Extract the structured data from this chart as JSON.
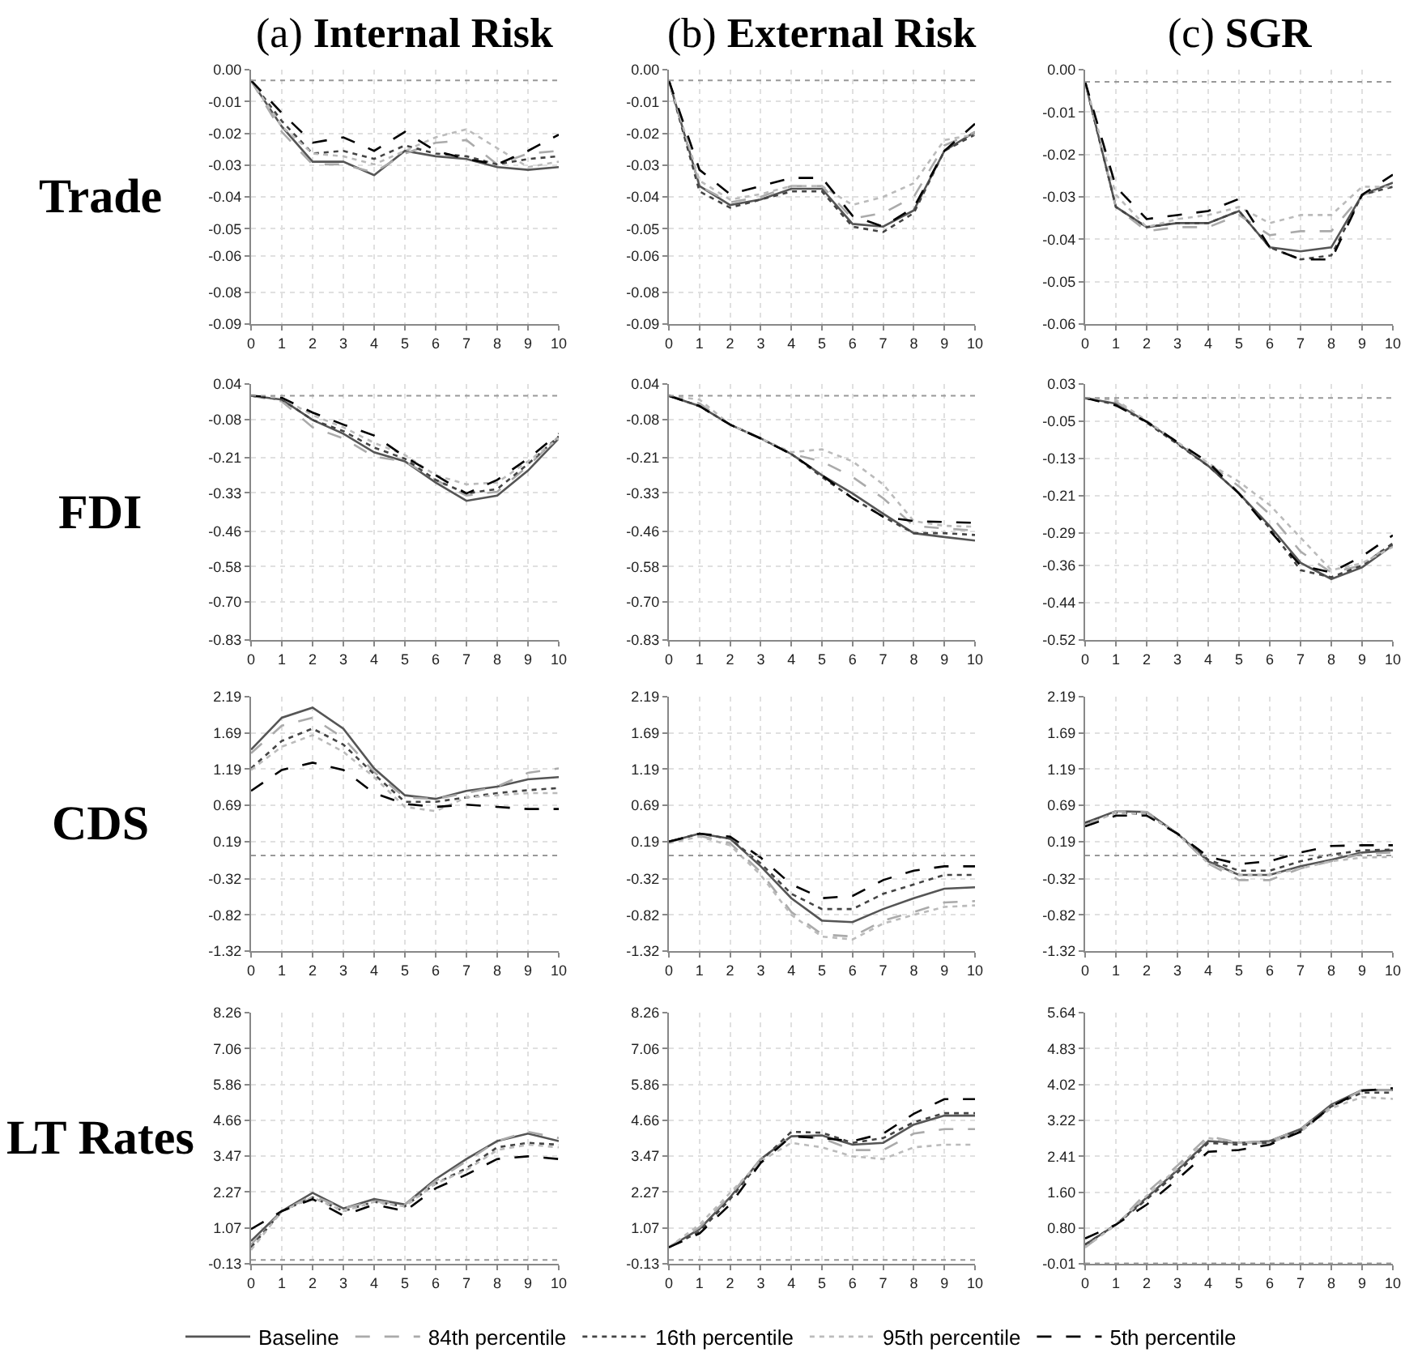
{
  "chart_data": [
    {
      "type": "line",
      "title": "(a) Internal Risk",
      "ylabel": "Trade",
      "x": [
        0,
        1,
        2,
        3,
        4,
        5,
        6,
        7,
        8,
        9,
        10
      ],
      "xlim": [
        0,
        10
      ],
      "xticks": [
        0,
        1,
        2,
        3,
        4,
        5,
        6,
        7,
        8,
        9,
        10
      ],
      "ylim": [
        -0.09,
        0.004
      ],
      "yticks": [
        {
          "value": 0.004,
          "label": "0.00"
        },
        {
          "value": -0.0078,
          "label": "-0.01"
        },
        {
          "value": -0.0195,
          "label": "-0.02"
        },
        {
          "value": -0.0313,
          "label": "-0.03"
        },
        {
          "value": -0.043,
          "label": "-0.04"
        },
        {
          "value": -0.0548,
          "label": "-0.05"
        },
        {
          "value": -0.0649,
          "label": "-0.06"
        },
        {
          "value": -0.0783,
          "label": "-0.08"
        },
        {
          "value": -0.09,
          "label": "-0.09"
        }
      ],
      "grid": true,
      "legend": "bottom",
      "ref_lines": [
        {
          "axis": "y",
          "value": 0,
          "color": "#999999",
          "line_style": "dotted"
        }
      ],
      "series": [
        {
          "name": "Baseline",
          "color": "#555555",
          "line_style": "solid",
          "values": [
            0,
            -0.017,
            -0.03,
            -0.03,
            -0.035,
            -0.026,
            -0.028,
            -0.029,
            -0.032,
            -0.033,
            -0.032
          ]
        },
        {
          "name": "84th percentile",
          "color": "#aaaaaa",
          "line_style": "dashed",
          "values": [
            0,
            -0.019,
            -0.031,
            -0.031,
            -0.034,
            -0.027,
            -0.023,
            -0.022,
            -0.031,
            -0.027,
            -0.026
          ]
        },
        {
          "name": "16th percentile",
          "color": "#444444",
          "line_style": "dotted",
          "values": [
            0,
            -0.015,
            -0.027,
            -0.026,
            -0.029,
            -0.024,
            -0.027,
            -0.028,
            -0.031,
            -0.029,
            -0.028
          ]
        },
        {
          "name": "95th percentile",
          "color": "#bbbbbb",
          "line_style": "dotted",
          "values": [
            0,
            -0.017,
            -0.027,
            -0.028,
            -0.031,
            -0.026,
            -0.021,
            -0.018,
            -0.025,
            -0.032,
            -0.03
          ]
        },
        {
          "name": "5th percentile",
          "color": "#000000",
          "line_style": "dashed",
          "values": [
            0,
            -0.012,
            -0.023,
            -0.021,
            -0.026,
            -0.019,
            -0.026,
            -0.029,
            -0.031,
            -0.026,
            -0.02
          ]
        }
      ]
    },
    {
      "type": "line",
      "title": "(b) External Risk",
      "x": [
        0,
        1,
        2,
        3,
        4,
        5,
        6,
        7,
        8,
        9,
        10
      ],
      "xlim": [
        0,
        10
      ],
      "xticks": [
        0,
        1,
        2,
        3,
        4,
        5,
        6,
        7,
        8,
        9,
        10
      ],
      "ylim": [
        -0.09,
        0.004
      ],
      "yticks": [
        {
          "value": 0.004,
          "label": "0.00"
        },
        {
          "value": -0.0078,
          "label": "-0.01"
        },
        {
          "value": -0.0195,
          "label": "-0.02"
        },
        {
          "value": -0.0313,
          "label": "-0.03"
        },
        {
          "value": -0.043,
          "label": "-0.04"
        },
        {
          "value": -0.0548,
          "label": "-0.05"
        },
        {
          "value": -0.0649,
          "label": "-0.06"
        },
        {
          "value": -0.0783,
          "label": "-0.08"
        },
        {
          "value": -0.09,
          "label": "-0.09"
        }
      ],
      "grid": true,
      "legend": "bottom",
      "ref_lines": [
        {
          "axis": "y",
          "value": 0,
          "color": "#999999",
          "line_style": "dotted"
        }
      ],
      "series": [
        {
          "name": "Baseline",
          "color": "#555555",
          "line_style": "solid",
          "values": [
            0,
            -0.039,
            -0.046,
            -0.044,
            -0.04,
            -0.04,
            -0.053,
            -0.054,
            -0.048,
            -0.026,
            -0.019
          ]
        },
        {
          "name": "84th percentile",
          "color": "#aaaaaa",
          "line_style": "dashed",
          "values": [
            0,
            -0.039,
            -0.045,
            -0.043,
            -0.039,
            -0.039,
            -0.051,
            -0.049,
            -0.043,
            -0.024,
            -0.019
          ]
        },
        {
          "name": "16th percentile",
          "color": "#444444",
          "line_style": "dotted",
          "values": [
            0,
            -0.041,
            -0.047,
            -0.044,
            -0.041,
            -0.041,
            -0.054,
            -0.056,
            -0.049,
            -0.026,
            -0.02
          ]
        },
        {
          "name": "95th percentile",
          "color": "#bbbbbb",
          "line_style": "dotted",
          "values": [
            0,
            -0.037,
            -0.044,
            -0.042,
            -0.039,
            -0.039,
            -0.046,
            -0.043,
            -0.038,
            -0.022,
            -0.02
          ]
        },
        {
          "name": "5th percentile",
          "color": "#000000",
          "line_style": "dashed",
          "values": [
            0,
            -0.033,
            -0.042,
            -0.039,
            -0.036,
            -0.036,
            -0.05,
            -0.054,
            -0.047,
            -0.026,
            -0.016
          ]
        }
      ]
    },
    {
      "type": "line",
      "title": "(c) SGR",
      "x": [
        0,
        1,
        2,
        3,
        4,
        5,
        6,
        7,
        8,
        9,
        10
      ],
      "xlim": [
        0,
        10
      ],
      "xticks": [
        0,
        1,
        2,
        3,
        4,
        5,
        6,
        7,
        8,
        9,
        10
      ],
      "ylim": [
        -0.06,
        0.003
      ],
      "yticks": [
        {
          "value": 0.003,
          "label": "0.00"
        },
        {
          "value": -0.0075,
          "label": "-0.01"
        },
        {
          "value": -0.018,
          "label": "-0.02"
        },
        {
          "value": -0.0285,
          "label": "-0.03"
        },
        {
          "value": -0.039,
          "label": "-0.04"
        },
        {
          "value": -0.0495,
          "label": "-0.05"
        },
        {
          "value": -0.06,
          "label": "-0.06"
        }
      ],
      "grid": true,
      "legend": "bottom",
      "ref_lines": [
        {
          "axis": "y",
          "value": 0,
          "color": "#999999",
          "line_style": "dotted"
        }
      ],
      "series": [
        {
          "name": "Baseline",
          "color": "#555555",
          "line_style": "solid",
          "values": [
            0,
            -0.031,
            -0.036,
            -0.035,
            -0.035,
            -0.032,
            -0.041,
            -0.042,
            -0.041,
            -0.028,
            -0.025
          ]
        },
        {
          "name": "84th percentile",
          "color": "#aaaaaa",
          "line_style": "dashed",
          "values": [
            0,
            -0.031,
            -0.037,
            -0.036,
            -0.036,
            -0.033,
            -0.038,
            -0.037,
            -0.037,
            -0.028,
            -0.026
          ]
        },
        {
          "name": "16th percentile",
          "color": "#444444",
          "line_style": "dotted",
          "values": [
            0,
            -0.031,
            -0.036,
            -0.035,
            -0.035,
            -0.032,
            -0.041,
            -0.044,
            -0.043,
            -0.028,
            -0.026
          ]
        },
        {
          "name": "95th percentile",
          "color": "#bbbbbb",
          "line_style": "dotted",
          "values": [
            0,
            -0.028,
            -0.036,
            -0.034,
            -0.033,
            -0.031,
            -0.035,
            -0.033,
            -0.033,
            -0.026,
            -0.026
          ]
        },
        {
          "name": "5th percentile",
          "color": "#000000",
          "line_style": "dashed",
          "values": [
            0,
            -0.026,
            -0.034,
            -0.033,
            -0.032,
            -0.029,
            -0.041,
            -0.044,
            -0.044,
            -0.028,
            -0.023
          ]
        }
      ]
    },
    {
      "type": "line",
      "ylabel": "FDI",
      "x": [
        0,
        1,
        2,
        3,
        4,
        5,
        6,
        7,
        8,
        9,
        10
      ],
      "xlim": [
        0,
        10
      ],
      "xticks": [
        0,
        1,
        2,
        3,
        4,
        5,
        6,
        7,
        8,
        9,
        10
      ],
      "ylim": [
        -0.83,
        0.04
      ],
      "yticks": [
        {
          "value": 0.04,
          "label": "0.04"
        },
        {
          "value": -0.08,
          "label": "-0.08"
        },
        {
          "value": -0.21,
          "label": "-0.21"
        },
        {
          "value": -0.33,
          "label": "-0.33"
        },
        {
          "value": -0.46,
          "label": "-0.46"
        },
        {
          "value": -0.58,
          "label": "-0.58"
        },
        {
          "value": -0.7,
          "label": "-0.70"
        },
        {
          "value": -0.83,
          "label": "-0.83"
        }
      ],
      "grid": true,
      "legend": "bottom",
      "ref_lines": [
        {
          "axis": "y",
          "value": 0,
          "color": "#999999",
          "line_style": "dotted"
        }
      ],
      "series": [
        {
          "name": "Baseline",
          "color": "#555555",
          "line_style": "solid",
          "values": [
            0,
            -0.013,
            -0.082,
            -0.129,
            -0.192,
            -0.223,
            -0.295,
            -0.357,
            -0.339,
            -0.254,
            -0.145
          ]
        },
        {
          "name": "84th percentile",
          "color": "#aaaaaa",
          "line_style": "dashed",
          "values": [
            0,
            -0.019,
            -0.107,
            -0.145,
            -0.207,
            -0.223,
            -0.286,
            -0.339,
            -0.326,
            -0.239,
            -0.138
          ]
        },
        {
          "name": "16th percentile",
          "color": "#444444",
          "line_style": "dotted",
          "values": [
            0,
            -0.013,
            -0.082,
            -0.12,
            -0.176,
            -0.214,
            -0.286,
            -0.332,
            -0.317,
            -0.232,
            -0.138
          ]
        },
        {
          "name": "95th percentile",
          "color": "#bbbbbb",
          "line_style": "dotted",
          "values": [
            0,
            -0.007,
            -0.066,
            -0.107,
            -0.16,
            -0.201,
            -0.27,
            -0.301,
            -0.295,
            -0.223,
            -0.145
          ]
        },
        {
          "name": "5th percentile",
          "color": "#000000",
          "line_style": "dashed",
          "values": [
            0,
            -0.007,
            -0.057,
            -0.098,
            -0.135,
            -0.207,
            -0.27,
            -0.332,
            -0.286,
            -0.214,
            -0.129
          ]
        }
      ]
    },
    {
      "type": "line",
      "x": [
        0,
        1,
        2,
        3,
        4,
        5,
        6,
        7,
        8,
        9,
        10
      ],
      "xlim": [
        0,
        10
      ],
      "xticks": [
        0,
        1,
        2,
        3,
        4,
        5,
        6,
        7,
        8,
        9,
        10
      ],
      "ylim": [
        -0.83,
        0.04
      ],
      "yticks": [
        {
          "value": 0.04,
          "label": "0.04"
        },
        {
          "value": -0.08,
          "label": "-0.08"
        },
        {
          "value": -0.21,
          "label": "-0.21"
        },
        {
          "value": -0.33,
          "label": "-0.33"
        },
        {
          "value": -0.46,
          "label": "-0.46"
        },
        {
          "value": -0.58,
          "label": "-0.58"
        },
        {
          "value": -0.7,
          "label": "-0.70"
        },
        {
          "value": -0.83,
          "label": "-0.83"
        }
      ],
      "grid": true,
      "legend": "bottom",
      "ref_lines": [
        {
          "axis": "y",
          "value": 0,
          "color": "#999999",
          "line_style": "dotted"
        }
      ],
      "series": [
        {
          "name": "Baseline",
          "color": "#555555",
          "line_style": "solid",
          "values": [
            0,
            -0.035,
            -0.098,
            -0.145,
            -0.198,
            -0.27,
            -0.332,
            -0.401,
            -0.467,
            -0.48,
            -0.492
          ]
        },
        {
          "name": "84th percentile",
          "color": "#aaaaaa",
          "line_style": "dashed",
          "values": [
            0,
            -0.026,
            -0.098,
            -0.145,
            -0.198,
            -0.223,
            -0.276,
            -0.348,
            -0.442,
            -0.451,
            -0.458
          ]
        },
        {
          "name": "16th percentile",
          "color": "#444444",
          "line_style": "dotted",
          "values": [
            0,
            -0.035,
            -0.098,
            -0.145,
            -0.198,
            -0.276,
            -0.348,
            -0.411,
            -0.467,
            -0.467,
            -0.473
          ]
        },
        {
          "name": "95th percentile",
          "color": "#bbbbbb",
          "line_style": "dotted",
          "values": [
            0,
            -0.013,
            -0.098,
            -0.145,
            -0.192,
            -0.182,
            -0.223,
            -0.301,
            -0.426,
            -0.442,
            -0.445
          ]
        },
        {
          "name": "5th percentile",
          "color": "#000000",
          "line_style": "dashed",
          "values": [
            0,
            -0.035,
            -0.098,
            -0.145,
            -0.198,
            -0.27,
            -0.348,
            -0.411,
            -0.426,
            -0.429,
            -0.432
          ]
        }
      ]
    },
    {
      "type": "line",
      "x": [
        0,
        1,
        2,
        3,
        4,
        5,
        6,
        7,
        8,
        9,
        10
      ],
      "xlim": [
        0,
        10
      ],
      "xticks": [
        0,
        1,
        2,
        3,
        4,
        5,
        6,
        7,
        8,
        9,
        10
      ],
      "ylim": [
        -0.52,
        0.03
      ],
      "yticks": [
        {
          "value": 0.03,
          "label": "0.03"
        },
        {
          "value": -0.05,
          "label": "-0.05"
        },
        {
          "value": -0.13,
          "label": "-0.13"
        },
        {
          "value": -0.21,
          "label": "-0.21"
        },
        {
          "value": -0.29,
          "label": "-0.29"
        },
        {
          "value": -0.36,
          "label": "-0.36"
        },
        {
          "value": -0.44,
          "label": "-0.44"
        },
        {
          "value": -0.52,
          "label": "-0.52"
        }
      ],
      "grid": true,
      "legend": "bottom",
      "ref_lines": [
        {
          "axis": "y",
          "value": 0,
          "color": "#999999",
          "line_style": "dotted"
        }
      ],
      "series": [
        {
          "name": "Baseline",
          "color": "#555555",
          "line_style": "solid",
          "values": [
            0,
            -0.012,
            -0.051,
            -0.097,
            -0.146,
            -0.205,
            -0.275,
            -0.354,
            -0.389,
            -0.364,
            -0.316
          ]
        },
        {
          "name": "84th percentile",
          "color": "#aaaaaa",
          "line_style": "dashed",
          "values": [
            0,
            -0.008,
            -0.051,
            -0.097,
            -0.14,
            -0.19,
            -0.25,
            -0.33,
            -0.375,
            -0.36,
            -0.31
          ]
        },
        {
          "name": "16th percentile",
          "color": "#444444",
          "line_style": "dotted",
          "values": [
            0,
            -0.014,
            -0.053,
            -0.099,
            -0.146,
            -0.205,
            -0.28,
            -0.37,
            -0.385,
            -0.36,
            -0.312
          ]
        },
        {
          "name": "95th percentile",
          "color": "#bbbbbb",
          "line_style": "dotted",
          "values": [
            0,
            -0.004,
            -0.049,
            -0.095,
            -0.14,
            -0.18,
            -0.23,
            -0.3,
            -0.37,
            -0.355,
            -0.32
          ]
        },
        {
          "name": "5th percentile",
          "color": "#000000",
          "line_style": "dashed",
          "values": [
            0,
            -0.016,
            -0.051,
            -0.095,
            -0.138,
            -0.205,
            -0.285,
            -0.36,
            -0.375,
            -0.34,
            -0.295
          ]
        }
      ]
    },
    {
      "type": "line",
      "ylabel": "CDS",
      "x": [
        0,
        1,
        2,
        3,
        4,
        5,
        6,
        7,
        8,
        9,
        10
      ],
      "xlim": [
        0,
        10
      ],
      "xticks": [
        0,
        1,
        2,
        3,
        4,
        5,
        6,
        7,
        8,
        9,
        10
      ],
      "ylim": [
        -1.32,
        2.19
      ],
      "yticks": [
        {
          "value": 2.19,
          "label": "2.19"
        },
        {
          "value": 1.69,
          "label": "1.69"
        },
        {
          "value": 1.19,
          "label": "1.19"
        },
        {
          "value": 0.69,
          "label": "0.69"
        },
        {
          "value": 0.19,
          "label": "0.19"
        },
        {
          "value": -0.32,
          "label": "-0.32"
        },
        {
          "value": -0.82,
          "label": "-0.82"
        },
        {
          "value": -1.32,
          "label": "-1.32"
        }
      ],
      "grid": true,
      "legend": "bottom",
      "ref_lines": [
        {
          "axis": "y",
          "value": 0,
          "color": "#999999",
          "line_style": "dotted"
        }
      ],
      "series": [
        {
          "name": "Baseline",
          "color": "#555555",
          "line_style": "solid",
          "values": [
            1.46,
            1.9,
            2.04,
            1.75,
            1.2,
            0.83,
            0.78,
            0.89,
            0.95,
            1.05,
            1.08
          ]
        },
        {
          "name": "84th percentile",
          "color": "#aaaaaa",
          "line_style": "dashed",
          "values": [
            1.41,
            1.79,
            1.9,
            1.62,
            1.15,
            0.8,
            0.78,
            0.86,
            0.95,
            1.14,
            1.2
          ]
        },
        {
          "name": "16th percentile",
          "color": "#444444",
          "line_style": "dotted",
          "values": [
            1.2,
            1.58,
            1.75,
            1.53,
            1.12,
            0.74,
            0.74,
            0.8,
            0.86,
            0.9,
            0.93
          ]
        },
        {
          "name": "95th percentile",
          "color": "#bbbbbb",
          "line_style": "dotted",
          "values": [
            1.18,
            1.5,
            1.66,
            1.43,
            1.08,
            0.67,
            0.61,
            0.8,
            0.83,
            0.86,
            0.86
          ]
        },
        {
          "name": "5th percentile",
          "color": "#000000",
          "line_style": "dashed",
          "values": [
            0.89,
            1.18,
            1.28,
            1.18,
            0.86,
            0.71,
            0.67,
            0.7,
            0.67,
            0.64,
            0.64
          ]
        }
      ]
    },
    {
      "type": "line",
      "x": [
        0,
        1,
        2,
        3,
        4,
        5,
        6,
        7,
        8,
        9,
        10
      ],
      "xlim": [
        0,
        10
      ],
      "xticks": [
        0,
        1,
        2,
        3,
        4,
        5,
        6,
        7,
        8,
        9,
        10
      ],
      "ylim": [
        -1.32,
        2.19
      ],
      "yticks": [
        {
          "value": 2.19,
          "label": "2.19"
        },
        {
          "value": 1.69,
          "label": "1.69"
        },
        {
          "value": 1.19,
          "label": "1.19"
        },
        {
          "value": 0.69,
          "label": "0.69"
        },
        {
          "value": 0.19,
          "label": "0.19"
        },
        {
          "value": -0.32,
          "label": "-0.32"
        },
        {
          "value": -0.82,
          "label": "-0.82"
        },
        {
          "value": -1.32,
          "label": "-1.32"
        }
      ],
      "grid": true,
      "legend": "bottom",
      "ref_lines": [
        {
          "axis": "y",
          "value": 0,
          "color": "#999999",
          "line_style": "dotted"
        }
      ],
      "series": [
        {
          "name": "Baseline",
          "color": "#555555",
          "line_style": "solid",
          "values": [
            0.19,
            0.3,
            0.23,
            -0.15,
            -0.59,
            -0.9,
            -0.92,
            -0.74,
            -0.59,
            -0.46,
            -0.44
          ]
        },
        {
          "name": "84th percentile",
          "color": "#aaaaaa",
          "line_style": "dashed",
          "values": [
            0.19,
            0.27,
            0.17,
            -0.23,
            -0.78,
            -1.09,
            -1.12,
            -0.9,
            -0.78,
            -0.65,
            -0.63
          ]
        },
        {
          "name": "16th percentile",
          "color": "#444444",
          "line_style": "dotted",
          "values": [
            0.19,
            0.3,
            0.23,
            -0.11,
            -0.53,
            -0.74,
            -0.74,
            -0.53,
            -0.4,
            -0.27,
            -0.27
          ]
        },
        {
          "name": "95th percentile",
          "color": "#bbbbbb",
          "line_style": "dotted",
          "values": [
            0.17,
            0.26,
            0.14,
            -0.27,
            -0.82,
            -1.12,
            -1.16,
            -0.94,
            -0.82,
            -0.71,
            -0.69
          ]
        },
        {
          "name": "5th percentile",
          "color": "#000000",
          "line_style": "dashed",
          "values": [
            0.19,
            0.3,
            0.26,
            -0.03,
            -0.4,
            -0.59,
            -0.56,
            -0.34,
            -0.21,
            -0.15,
            -0.15
          ]
        }
      ]
    },
    {
      "type": "line",
      "x": [
        0,
        1,
        2,
        3,
        4,
        5,
        6,
        7,
        8,
        9,
        10
      ],
      "xlim": [
        0,
        10
      ],
      "xticks": [
        0,
        1,
        2,
        3,
        4,
        5,
        6,
        7,
        8,
        9,
        10
      ],
      "ylim": [
        -1.32,
        2.19
      ],
      "yticks": [
        {
          "value": 2.19,
          "label": "2.19"
        },
        {
          "value": 1.69,
          "label": "1.69"
        },
        {
          "value": 1.19,
          "label": "1.19"
        },
        {
          "value": 0.69,
          "label": "0.69"
        },
        {
          "value": 0.19,
          "label": "0.19"
        },
        {
          "value": -0.32,
          "label": "-0.32"
        },
        {
          "value": -0.82,
          "label": "-0.82"
        },
        {
          "value": -1.32,
          "label": "-1.32"
        }
      ],
      "grid": true,
      "legend": "bottom",
      "ref_lines": [
        {
          "axis": "y",
          "value": 0,
          "color": "#999999",
          "line_style": "dotted"
        }
      ],
      "series": [
        {
          "name": "Baseline",
          "color": "#555555",
          "line_style": "solid",
          "values": [
            0.45,
            0.61,
            0.6,
            0.3,
            -0.08,
            -0.27,
            -0.27,
            -0.15,
            -0.06,
            0.04,
            0.07
          ]
        },
        {
          "name": "84th percentile",
          "color": "#aaaaaa",
          "line_style": "dashed",
          "values": [
            0.42,
            0.61,
            0.6,
            0.3,
            -0.11,
            -0.34,
            -0.34,
            -0.18,
            -0.08,
            0.02,
            0.04
          ]
        },
        {
          "name": "16th percentile",
          "color": "#444444",
          "line_style": "dotted",
          "values": [
            0.45,
            0.59,
            0.57,
            0.3,
            -0.06,
            -0.21,
            -0.21,
            -0.08,
            0.01,
            0.07,
            0.08
          ]
        },
        {
          "name": "95th percentile",
          "color": "#bbbbbb",
          "line_style": "dotted",
          "values": [
            0.42,
            0.59,
            0.57,
            0.3,
            -0.11,
            -0.27,
            -0.27,
            -0.18,
            -0.08,
            -0.03,
            -0.02
          ]
        },
        {
          "name": "5th percentile",
          "color": "#000000",
          "line_style": "dashed",
          "values": [
            0.4,
            0.55,
            0.55,
            0.3,
            -0.02,
            -0.12,
            -0.08,
            0.04,
            0.13,
            0.14,
            0.14
          ]
        }
      ]
    },
    {
      "type": "line",
      "ylabel": "LT Rates",
      "x": [
        0,
        1,
        2,
        3,
        4,
        5,
        6,
        7,
        8,
        9,
        10
      ],
      "xlim": [
        0,
        10
      ],
      "xticks": [
        0,
        1,
        2,
        3,
        4,
        5,
        6,
        7,
        8,
        9,
        10
      ],
      "ylim": [
        -0.13,
        8.26
      ],
      "yticks": [
        {
          "value": 8.26,
          "label": "8.26"
        },
        {
          "value": 7.06,
          "label": "7.06"
        },
        {
          "value": 5.86,
          "label": "5.86"
        },
        {
          "value": 4.66,
          "label": "4.66"
        },
        {
          "value": 3.47,
          "label": "3.47"
        },
        {
          "value": 2.27,
          "label": "2.27"
        },
        {
          "value": 1.07,
          "label": "1.07"
        },
        {
          "value": -0.13,
          "label": "-0.13"
        }
      ],
      "grid": true,
      "legend": "bottom",
      "ref_lines": [
        {
          "axis": "y",
          "value": 0,
          "color": "#999999",
          "line_style": "dotted"
        }
      ],
      "series": [
        {
          "name": "Baseline",
          "color": "#555555",
          "line_style": "solid",
          "values": [
            0.63,
            1.63,
            2.24,
            1.72,
            2.03,
            1.85,
            2.7,
            3.37,
            3.97,
            4.22,
            3.97
          ]
        },
        {
          "name": "84th percentile",
          "color": "#aaaaaa",
          "line_style": "dashed",
          "values": [
            0.51,
            1.63,
            2.15,
            1.72,
            1.97,
            1.85,
            2.64,
            3.3,
            3.97,
            4.28,
            4.07
          ]
        },
        {
          "name": "16th percentile",
          "color": "#444444",
          "line_style": "dotted",
          "values": [
            0.42,
            1.63,
            2.09,
            1.63,
            1.94,
            1.79,
            2.55,
            3.06,
            3.76,
            3.91,
            3.85
          ]
        },
        {
          "name": "95th percentile",
          "color": "#bbbbbb",
          "line_style": "dotted",
          "values": [
            0.33,
            1.63,
            2.09,
            1.63,
            1.94,
            1.79,
            2.55,
            3.0,
            3.67,
            3.85,
            3.76
          ]
        },
        {
          "name": "5th percentile",
          "color": "#000000",
          "line_style": "dashed",
          "values": [
            1.03,
            1.63,
            2.03,
            1.48,
            1.85,
            1.63,
            2.39,
            2.85,
            3.37,
            3.46,
            3.37
          ]
        }
      ]
    },
    {
      "type": "line",
      "x": [
        0,
        1,
        2,
        3,
        4,
        5,
        6,
        7,
        8,
        9,
        10
      ],
      "xlim": [
        0,
        10
      ],
      "xticks": [
        0,
        1,
        2,
        3,
        4,
        5,
        6,
        7,
        8,
        9,
        10
      ],
      "ylim": [
        -0.13,
        8.26
      ],
      "yticks": [
        {
          "value": 8.26,
          "label": "8.26"
        },
        {
          "value": 7.06,
          "label": "7.06"
        },
        {
          "value": 5.86,
          "label": "5.86"
        },
        {
          "value": 4.66,
          "label": "4.66"
        },
        {
          "value": 3.47,
          "label": "3.47"
        },
        {
          "value": 2.27,
          "label": "2.27"
        },
        {
          "value": 1.07,
          "label": "1.07"
        },
        {
          "value": -0.13,
          "label": "-0.13"
        }
      ],
      "grid": true,
      "legend": "bottom",
      "ref_lines": [
        {
          "axis": "y",
          "value": 0,
          "color": "#999999",
          "line_style": "dotted"
        }
      ],
      "series": [
        {
          "name": "Baseline",
          "color": "#555555",
          "line_style": "solid",
          "values": [
            0.42,
            1.03,
            2.09,
            3.37,
            4.13,
            4.16,
            3.85,
            3.91,
            4.52,
            4.82,
            4.82
          ]
        },
        {
          "name": "84th percentile",
          "color": "#aaaaaa",
          "line_style": "dashed",
          "values": [
            0.42,
            1.09,
            2.15,
            3.37,
            4.13,
            4.07,
            3.67,
            3.67,
            4.22,
            4.37,
            4.37
          ]
        },
        {
          "name": "16th percentile",
          "color": "#444444",
          "line_style": "dotted",
          "values": [
            0.42,
            0.94,
            2.03,
            3.3,
            4.28,
            4.25,
            3.91,
            4.07,
            4.6,
            4.9,
            4.9
          ]
        },
        {
          "name": "95th percentile",
          "color": "#bbbbbb",
          "line_style": "dotted",
          "values": [
            0.42,
            1.18,
            2.24,
            3.3,
            3.91,
            3.76,
            3.46,
            3.37,
            3.76,
            3.85,
            3.85
          ]
        },
        {
          "name": "5th percentile",
          "color": "#000000",
          "line_style": "dashed",
          "values": [
            0.42,
            0.88,
            1.85,
            3.24,
            4.13,
            4.07,
            3.97,
            4.22,
            4.88,
            5.37,
            5.37
          ]
        }
      ]
    },
    {
      "type": "line",
      "x": [
        0,
        1,
        2,
        3,
        4,
        5,
        6,
        7,
        8,
        9,
        10
      ],
      "xlim": [
        0,
        10
      ],
      "xticks": [
        0,
        1,
        2,
        3,
        4,
        5,
        6,
        7,
        8,
        9,
        10
      ],
      "ylim": [
        -0.01,
        5.64
      ],
      "yticks": [
        {
          "value": 5.64,
          "label": "5.64"
        },
        {
          "value": 4.83,
          "label": "4.83"
        },
        {
          "value": 4.02,
          "label": "4.02"
        },
        {
          "value": 3.22,
          "label": "3.22"
        },
        {
          "value": 2.41,
          "label": "2.41"
        },
        {
          "value": 1.6,
          "label": "1.60"
        },
        {
          "value": 0.8,
          "label": "0.80"
        },
        {
          "value": -0.01,
          "label": "-0.01"
        }
      ],
      "grid": true,
      "legend": "bottom",
      "ref_lines": [
        {
          "axis": "y",
          "value": 0,
          "color": "#999999",
          "line_style": "dotted"
        }
      ],
      "series": [
        {
          "name": "Baseline",
          "color": "#555555",
          "line_style": "solid",
          "values": [
            0.42,
            0.87,
            1.48,
            2.1,
            2.75,
            2.71,
            2.75,
            3.02,
            3.57,
            3.9,
            3.9
          ]
        },
        {
          "name": "84th percentile",
          "color": "#aaaaaa",
          "line_style": "dashed",
          "values": [
            0.36,
            0.87,
            1.59,
            2.2,
            2.86,
            2.71,
            2.75,
            3.02,
            3.53,
            3.9,
            3.9
          ]
        },
        {
          "name": "16th percentile",
          "color": "#444444",
          "line_style": "dotted",
          "values": [
            0.42,
            0.87,
            1.44,
            2.04,
            2.71,
            2.67,
            2.71,
            2.98,
            3.53,
            3.84,
            3.84
          ]
        },
        {
          "name": "95th percentile",
          "color": "#bbbbbb",
          "line_style": "dotted",
          "values": [
            0.36,
            0.87,
            1.52,
            2.14,
            2.82,
            2.71,
            2.71,
            2.96,
            3.49,
            3.74,
            3.7
          ]
        },
        {
          "name": "5th percentile",
          "color": "#000000",
          "line_style": "dashed",
          "values": [
            0.56,
            0.87,
            1.32,
            1.89,
            2.51,
            2.55,
            2.67,
            2.96,
            3.53,
            3.88,
            3.94
          ]
        }
      ]
    }
  ]
}
